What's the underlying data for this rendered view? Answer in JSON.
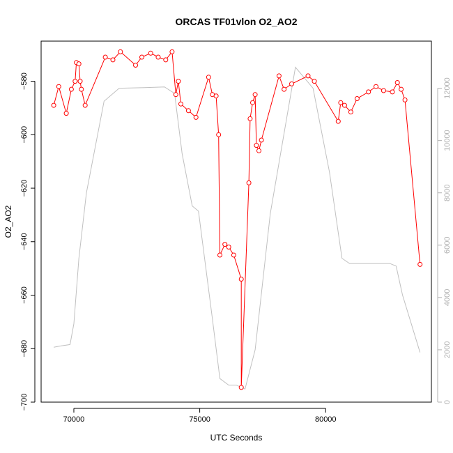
{
  "chart_data": {
    "type": "line",
    "title": "ORCAS TF01vlon O2_AO2",
    "xlabel": "UTC Seconds",
    "ylabel": "O2_AO2",
    "xlim": [
      68700,
      84200
    ],
    "ylim": [
      -700,
      -565
    ],
    "y2lim": [
      0,
      13800
    ],
    "x_ticks": [
      70000,
      75000,
      80000
    ],
    "y_ticks": [
      -700,
      -680,
      -660,
      -640,
      -620,
      -600,
      -580
    ],
    "y2_ticks": [
      0,
      2000,
      4000,
      6000,
      8000,
      10000,
      12000
    ],
    "colors": {
      "primary": "#ff0000",
      "secondary": "#c0c0c0",
      "frame": "#000000"
    },
    "series": [
      {
        "role": "primary",
        "values": [
          [
            69200,
            -589
          ],
          [
            69400,
            -582
          ],
          [
            69700,
            -592
          ],
          [
            69900,
            -583
          ],
          [
            70050,
            -580
          ],
          [
            70100,
            -573
          ],
          [
            70200,
            -573.5
          ],
          [
            70250,
            -580
          ],
          [
            70300,
            -583
          ],
          [
            70450,
            -589
          ],
          [
            71250,
            -571
          ],
          [
            71550,
            -572
          ],
          [
            71850,
            -569
          ],
          [
            72450,
            -574
          ],
          [
            72700,
            -571
          ],
          [
            73050,
            -569.5
          ],
          [
            73350,
            -571
          ],
          [
            73650,
            -572
          ],
          [
            73900,
            -569
          ],
          [
            74050,
            -585
          ],
          [
            74150,
            -580
          ],
          [
            74250,
            -588.5
          ],
          [
            74550,
            -591
          ],
          [
            74850,
            -593.5
          ],
          [
            75350,
            -578.5
          ],
          [
            75500,
            -585
          ],
          [
            75650,
            -585.5
          ],
          [
            75750,
            -600
          ],
          [
            75800,
            -645
          ],
          [
            76000,
            -641
          ],
          [
            76150,
            -642
          ],
          [
            76350,
            -645
          ],
          [
            76650,
            -654
          ],
          [
            76650,
            -694.5
          ],
          [
            76950,
            -618
          ],
          [
            77000,
            -594
          ],
          [
            77100,
            -588
          ],
          [
            77200,
            -585
          ],
          [
            77250,
            -604
          ],
          [
            77350,
            -606
          ],
          [
            77450,
            -602
          ],
          [
            78150,
            -578
          ],
          [
            78350,
            -583
          ],
          [
            78650,
            -581
          ],
          [
            79300,
            -578
          ],
          [
            79550,
            -580
          ],
          [
            80500,
            -595
          ],
          [
            80600,
            -588
          ],
          [
            80750,
            -589
          ],
          [
            81000,
            -591.5
          ],
          [
            81250,
            -586.5
          ],
          [
            81700,
            -584
          ],
          [
            82000,
            -582
          ],
          [
            82300,
            -583.5
          ],
          [
            82650,
            -584
          ],
          [
            82850,
            -580.5
          ],
          [
            83000,
            -583
          ],
          [
            83150,
            -587
          ],
          [
            83750,
            -648.5
          ]
        ]
      },
      {
        "role": "secondary",
        "values": [
          [
            69200,
            2100
          ],
          [
            69500,
            2150
          ],
          [
            69850,
            2200
          ],
          [
            70000,
            3000
          ],
          [
            70200,
            5500
          ],
          [
            70500,
            8000
          ],
          [
            71200,
            11500
          ],
          [
            71800,
            12000
          ],
          [
            72800,
            12020
          ],
          [
            73600,
            12050
          ],
          [
            74000,
            11800
          ],
          [
            74300,
            9500
          ],
          [
            74700,
            7500
          ],
          [
            74950,
            7300
          ],
          [
            75500,
            3200
          ],
          [
            75800,
            900
          ],
          [
            76150,
            650
          ],
          [
            76450,
            650
          ],
          [
            76800,
            500
          ],
          [
            77200,
            2000
          ],
          [
            77800,
            7200
          ],
          [
            78800,
            12800
          ],
          [
            79500,
            12000
          ],
          [
            80150,
            8800
          ],
          [
            80650,
            5500
          ],
          [
            80950,
            5300
          ],
          [
            81450,
            5300
          ],
          [
            82550,
            5300
          ],
          [
            82800,
            5200
          ],
          [
            83050,
            4100
          ],
          [
            83750,
            1900
          ]
        ]
      }
    ]
  }
}
